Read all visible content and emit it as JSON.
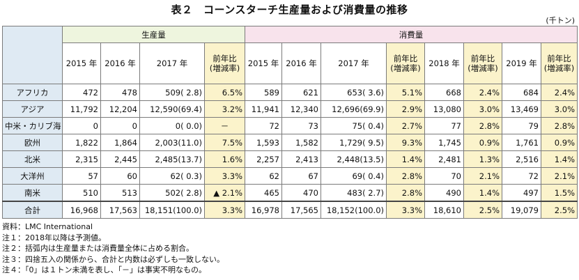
{
  "title": "表２　コーンスターチ生産量および消費量の推移",
  "unit": "(千トン)",
  "groups": {
    "production": "生産量",
    "consumption": "消費量"
  },
  "years": [
    "2015 年",
    "2016 年",
    "2017 年",
    "2018 年",
    "2019 年"
  ],
  "yoy_label": {
    "line1": "前年比",
    "line2": "(増減率)"
  },
  "rows": [
    {
      "region": "アフリカ",
      "p2015": "472",
      "p2016": "478",
      "p2017": "509(  2.8)",
      "pyoy": "6.5%",
      "c2015": "589",
      "c2016": "621",
      "c2017": "653(  3.6)",
      "cyoy17": "5.1%",
      "c2018": "668",
      "cyoy18": "2.4%",
      "c2019": "684",
      "cyoy19": "2.4%"
    },
    {
      "region": "アジア",
      "p2015": "11,792",
      "p2016": "12,204",
      "p2017": "12,590(69.4)",
      "pyoy": "3.2%",
      "c2015": "11,941",
      "c2016": "12,340",
      "c2017": "12,696(69.9)",
      "cyoy17": "2.9%",
      "c2018": "13,080",
      "cyoy18": "3.0%",
      "c2019": "13,469",
      "cyoy19": "3.0%"
    },
    {
      "region": "中米・カリブ海",
      "p2015": "0",
      "p2016": "0",
      "p2017": "0(  0.0)",
      "pyoy": "－",
      "c2015": "72",
      "c2016": "73",
      "c2017": "75(  0.4)",
      "cyoy17": "2.7%",
      "c2018": "77",
      "cyoy18": "2.8%",
      "c2019": "79",
      "cyoy19": "2.8%"
    },
    {
      "region": "欧州",
      "p2015": "1,822",
      "p2016": "1,864",
      "p2017": "2,003(11.0)",
      "pyoy": "7.5%",
      "c2015": "1,593",
      "c2016": "1,582",
      "c2017": "1,729(  9.5)",
      "cyoy17": "9.3%",
      "c2018": "1,745",
      "cyoy18": "0.9%",
      "c2019": "1,761",
      "cyoy19": "0.9%"
    },
    {
      "region": "北米",
      "p2015": "2,315",
      "p2016": "2,445",
      "p2017": "2,485(13.7)",
      "pyoy": "1.6%",
      "c2015": "2,257",
      "c2016": "2,413",
      "c2017": "2,448(13.5)",
      "cyoy17": "1.4%",
      "c2018": "2,481",
      "cyoy18": "1.3%",
      "c2019": "2,516",
      "cyoy19": "1.4%"
    },
    {
      "region": "大洋州",
      "p2015": "57",
      "p2016": "60",
      "p2017": "62(  0.3)",
      "pyoy": "3.3%",
      "c2015": "62",
      "c2016": "67",
      "c2017": "69(  0.4)",
      "cyoy17": "2.8%",
      "c2018": "70",
      "cyoy18": "2.1%",
      "c2019": "72",
      "cyoy19": "2.1%"
    },
    {
      "region": "南米",
      "p2015": "510",
      "p2016": "513",
      "p2017": "502(  2.8)",
      "pyoy": "▲ 2.1%",
      "c2015": "465",
      "c2016": "470",
      "c2017": "483(  2.7)",
      "cyoy17": "2.8%",
      "c2018": "490",
      "cyoy18": "1.4%",
      "c2019": "497",
      "cyoy19": "1.5%"
    }
  ],
  "total": {
    "region": "合計",
    "p2015": "16,968",
    "p2016": "17,563",
    "p2017": "18,151(100.0)",
    "pyoy": "3.3%",
    "c2015": "16,978",
    "c2016": "17,565",
    "c2017": "18,152(100.0)",
    "cyoy17": "3.3%",
    "c2018": "18,610",
    "cyoy18": "2.5%",
    "c2019": "19,079",
    "cyoy19": "2.5%"
  },
  "notes": [
    "資料：LMC International",
    "注１：2018年以降は予測値。",
    "注２：括弧内は生産量または消費量全体に占める割合。",
    "注３：四捨五入の関係から、合計と内数は必ずしも一致しない。",
    "注４：「0」は１トン未満を表し、「－」は事実不明なもの。"
  ]
}
